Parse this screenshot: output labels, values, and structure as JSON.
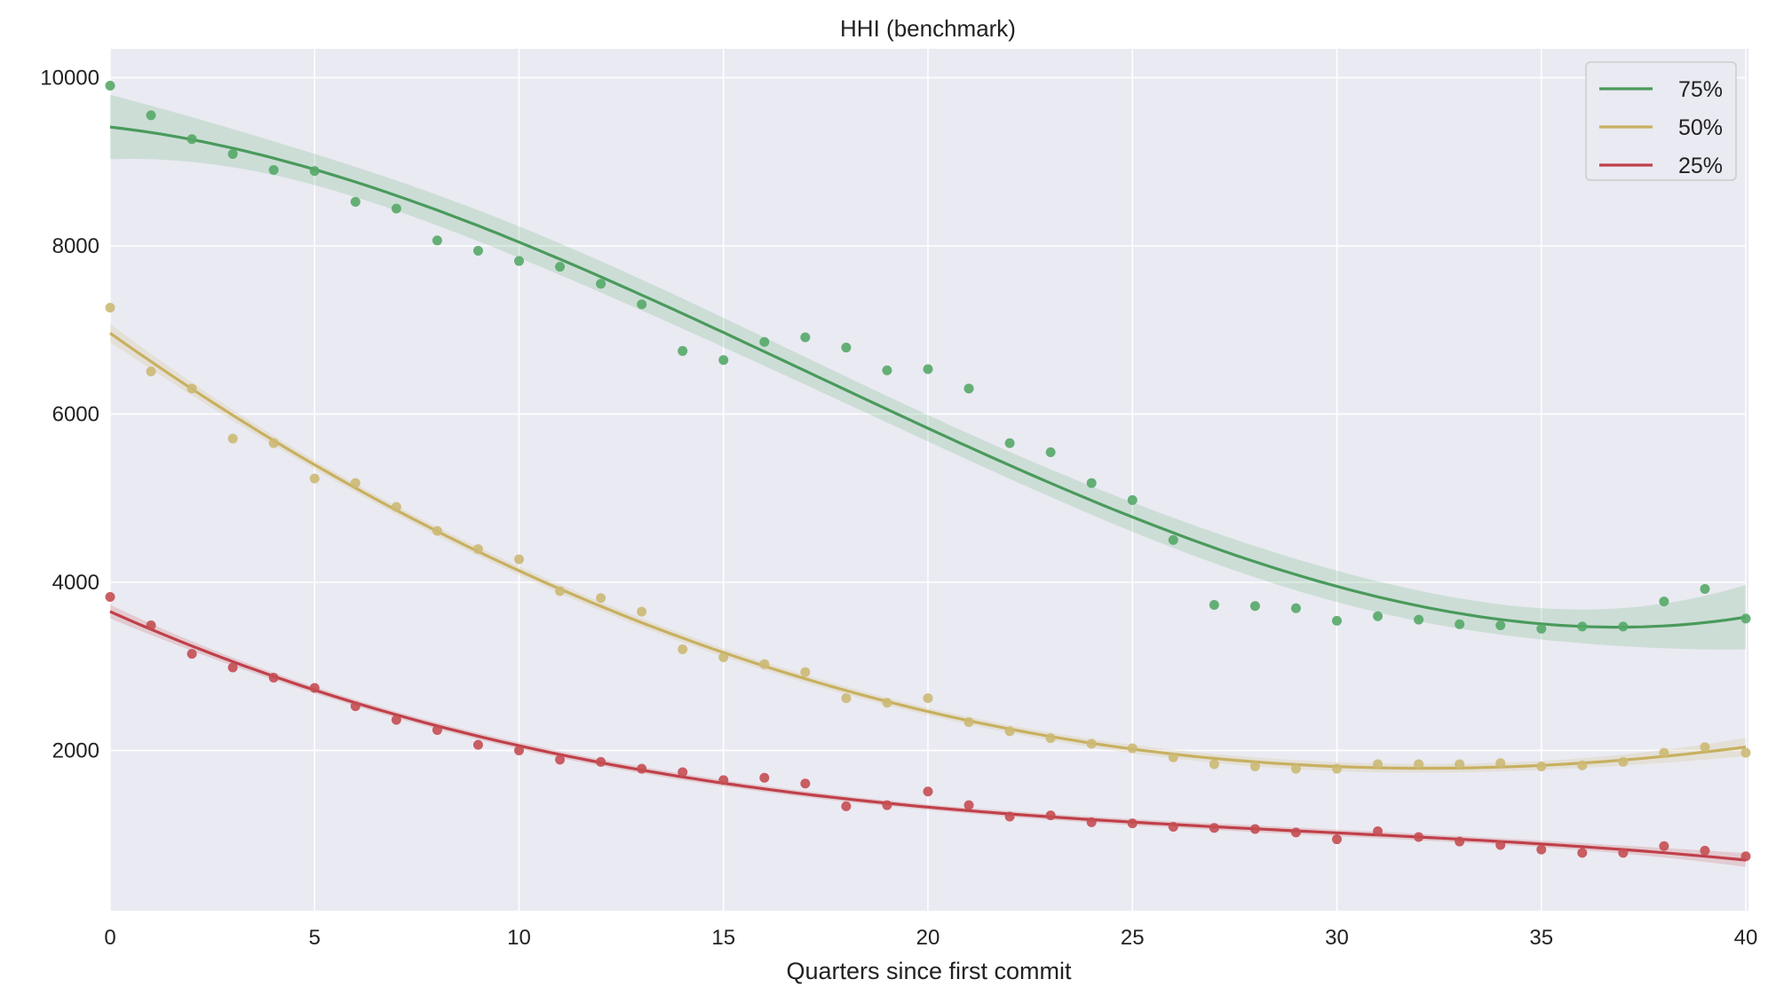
{
  "chart_data": {
    "type": "scatter",
    "title": "HHI (benchmark)",
    "xlabel": "Quarters since first commit",
    "ylabel": "",
    "xlim": [
      0,
      40
    ],
    "ylim": [
      95,
      10343
    ],
    "xticks": [
      0,
      5,
      10,
      15,
      20,
      25,
      30,
      35,
      40
    ],
    "yticks": [
      2000,
      4000,
      6000,
      8000,
      10000
    ],
    "grid": true,
    "background": "#eaeaf2",
    "legend_position": "top-right",
    "fit": "cubic polynomial regression with confidence band",
    "x": [
      0,
      1,
      2,
      3,
      4,
      5,
      6,
      7,
      8,
      9,
      10,
      11,
      12,
      13,
      14,
      15,
      16,
      17,
      18,
      19,
      20,
      21,
      22,
      23,
      24,
      25,
      26,
      27,
      28,
      29,
      30,
      31,
      32,
      33,
      34,
      35,
      36,
      37,
      38,
      39,
      40
    ],
    "series": [
      {
        "name": "75%",
        "color": "#55a868",
        "line_color": "#4a9a5c",
        "values": [
          9905,
          9553,
          9269,
          9093,
          8903,
          8890,
          8524,
          8443,
          8064,
          7942,
          7820,
          7752,
          7549,
          7305,
          6750,
          6642,
          6858,
          6913,
          6791,
          6520,
          6534,
          6304,
          5654,
          5546,
          5180,
          4977,
          4503,
          3731,
          3718,
          3691,
          3542,
          3596,
          3555,
          3501,
          3488,
          3447,
          3474,
          3474,
          3772,
          3921,
          3569
        ]
      },
      {
        "name": "50%",
        "color": "#ccb974",
        "line_color": "#c8b060",
        "values": [
          7265,
          6507,
          6304,
          5708,
          5654,
          5234,
          5180,
          4896,
          4611,
          4395,
          4273,
          3894,
          3813,
          3650,
          3203,
          3108,
          3027,
          2932,
          2621,
          2567,
          2621,
          2337,
          2228,
          2147,
          2080,
          2026,
          1918,
          1837,
          1810,
          1783,
          1783,
          1837,
          1837,
          1837,
          1850,
          1810,
          1823,
          1864,
          1972,
          2039,
          1972
        ]
      },
      {
        "name": "25%",
        "color": "#c44e52",
        "line_color": "#c0404a",
        "values": [
          3826,
          3488,
          3149,
          2987,
          2865,
          2744,
          2527,
          2364,
          2243,
          2067,
          2000,
          1891,
          1864,
          1783,
          1742,
          1648,
          1675,
          1607,
          1336,
          1350,
          1512,
          1350,
          1214,
          1228,
          1147,
          1133,
          1093,
          1079,
          1066,
          1025,
          944,
          1039,
          971,
          917,
          876,
          822,
          782,
          782,
          863,
          809,
          741
        ]
      }
    ]
  }
}
